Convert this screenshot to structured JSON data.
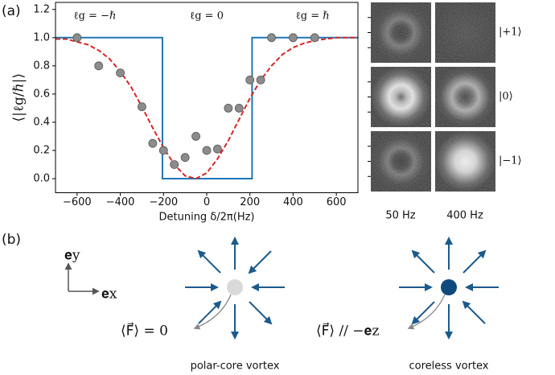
{
  "panel_labels": [
    "(a)",
    "(b)"
  ],
  "chart_data": {
    "type": "scatter",
    "annotations": [
      "ℓg = −ℏ",
      "ℓg = 0",
      "ℓg = ℏ"
    ],
    "x_label": "Detuning δ/2π(Hz)",
    "y_label": "⟨|ℓg/ℏ|⟩",
    "xlim": [
      -700,
      700
    ],
    "xticks": [
      {
        "value": -600,
        "label": "−600"
      },
      {
        "value": -400,
        "label": "−400"
      },
      {
        "value": -200,
        "label": "−200"
      },
      0,
      200,
      400,
      600
    ],
    "ylim": [
      -0.1,
      1.25
    ],
    "yticks": [
      {
        "value": 0,
        "label": "0.0"
      },
      0.2,
      0.4,
      0.6,
      0.8,
      {
        "value": 1,
        "label": "1.0"
      },
      1.2
    ],
    "series": [
      {
        "style": "step",
        "color": "#1f77b4",
        "x": [
          -700,
          -205,
          -205,
          210,
          210,
          700
        ],
        "values": [
          1,
          1,
          0,
          0,
          1,
          1
        ]
      },
      {
        "style": "dashed",
        "color": "#d62728",
        "x": [
          -700,
          -650,
          -600,
          -550,
          -500,
          -450,
          -400,
          -350,
          -300,
          -250,
          -200,
          -150,
          -100,
          -50,
          0,
          50,
          100,
          150,
          200,
          250,
          300,
          350,
          400,
          450,
          500,
          550,
          600,
          650,
          700
        ],
        "values": [
          0.99,
          0.99,
          0.97,
          0.95,
          0.91,
          0.85,
          0.76,
          0.65,
          0.51,
          0.36,
          0.22,
          0.1,
          0.02,
          0,
          0.04,
          0.14,
          0.27,
          0.42,
          0.57,
          0.7,
          0.8,
          0.88,
          0.93,
          0.96,
          0.98,
          0.99,
          1,
          1,
          1
        ]
      },
      {
        "style": "marker",
        "color": "#8c8c8c",
        "x": [
          -600,
          -500,
          -400,
          -300,
          -250,
          -200,
          -150,
          -100,
          -50,
          0,
          50,
          100,
          150,
          200,
          250,
          300,
          400,
          500
        ],
        "values": [
          1,
          0.8,
          0.75,
          0.51,
          0.25,
          0.2,
          0.1,
          0.15,
          0.3,
          0.2,
          0.21,
          0.5,
          0.5,
          0.7,
          0.7,
          1,
          1,
          1
        ]
      }
    ]
  },
  "images": {
    "rows": [
      "|+1⟩",
      "|0⟩",
      "|−1⟩"
    ],
    "columns": [
      "50 Hz",
      "400 Hz"
    ]
  },
  "diagram": {
    "axes": [
      "𝐞y",
      "𝐞x"
    ],
    "vortices": [
      {
        "annotation": "⟨F⃗⟩ = 0",
        "caption": "polar-core vortex"
      },
      {
        "annotation": "⟨F⃗⟩ // −𝐞z",
        "caption": "coreless vortex"
      }
    ]
  }
}
